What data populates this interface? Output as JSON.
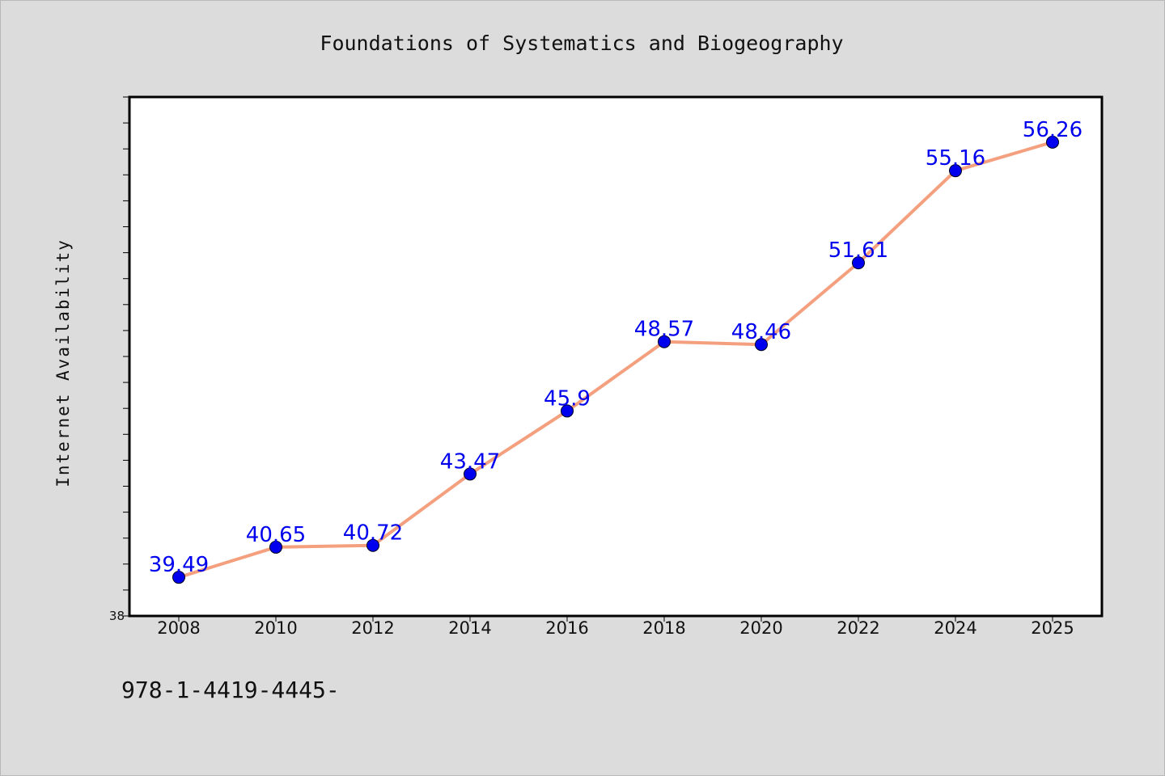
{
  "chart_data": {
    "type": "line",
    "title": "Foundations of Systematics and Biogeography",
    "xlabel": "",
    "ylabel": "Internet Availability",
    "categories": [
      "2008",
      "2010",
      "2012",
      "2014",
      "2016",
      "2018",
      "2020",
      "2022",
      "2024",
      "2025"
    ],
    "series": [
      {
        "values": [
          39.49,
          40.65,
          40.72,
          43.47,
          45.9,
          48.57,
          48.46,
          51.61,
          55.16,
          56.26
        ],
        "labels": [
          "39.49",
          "40.65",
          "40.72",
          "43.47",
          "45.9",
          "48.57",
          "48.46",
          "51.61",
          "55.16",
          "56.26"
        ],
        "line_color": "#f4a07e",
        "marker_color": "#0000ee",
        "label_color": "#0000ee"
      }
    ],
    "ylim": [
      38,
      58
    ],
    "y_tick_label": "38",
    "grid": false,
    "legend": "none"
  },
  "footer_text": "978-1-4419-4445-"
}
